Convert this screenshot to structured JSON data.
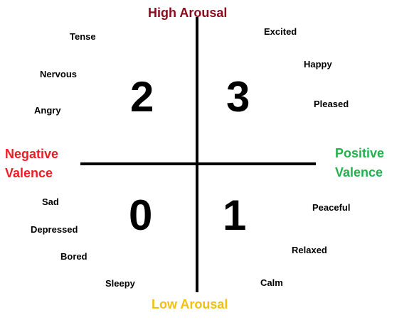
{
  "poles": {
    "top": "High Arousal",
    "bottom": "Low Arousal",
    "left": [
      "Negative",
      "Valence"
    ],
    "right": [
      "Positive",
      "Valence"
    ]
  },
  "quadrants": {
    "top_left": "2",
    "top_right": "3",
    "bottom_left": "0",
    "bottom_right": "1"
  },
  "emotions": {
    "top_left": [
      "Tense",
      "Nervous",
      "Angry"
    ],
    "top_right": [
      "Excited",
      "Happy",
      "Pleased"
    ],
    "bottom_left": [
      "Sad",
      "Depressed",
      "Bored",
      "Sleepy"
    ],
    "bottom_right": [
      "Peaceful",
      "Relaxed",
      "Calm"
    ]
  },
  "colors": {
    "high_arousal": "#8b0a1e",
    "low_arousal": "#f2c010",
    "negative_valence": "#ee1c24",
    "positive_valence": "#22b14c"
  }
}
